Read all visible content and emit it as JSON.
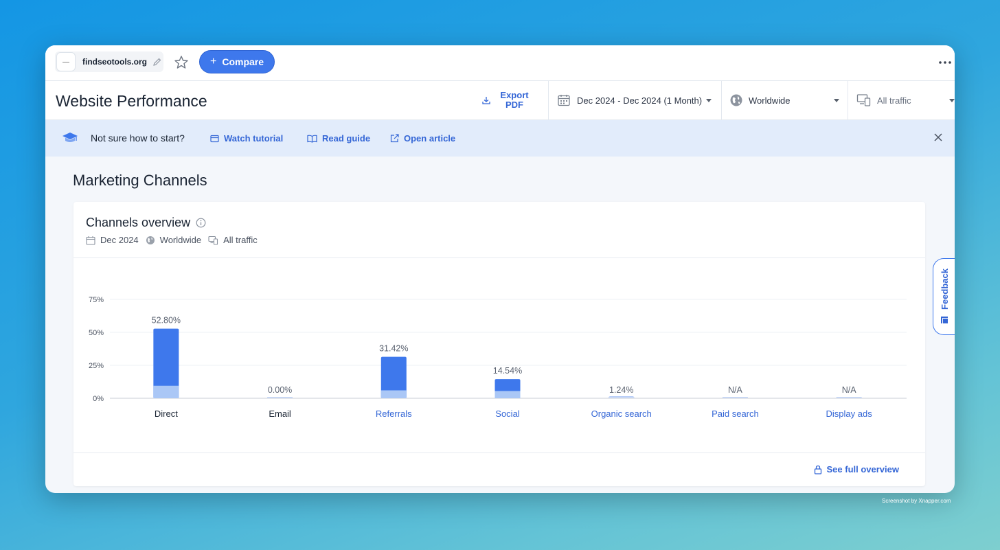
{
  "topbar": {
    "site_name": "findseotools.org",
    "compare_label": "Compare"
  },
  "header": {
    "title": "Website Performance",
    "export_line1": "Export",
    "export_line2": "PDF",
    "date_range": "Dec 2024 - Dec 2024 (1 Month)",
    "region": "Worldwide",
    "traffic": "All traffic"
  },
  "tips": {
    "prompt": "Not sure how to start?",
    "watch": "Watch tutorial",
    "read": "Read guide",
    "open": "Open article"
  },
  "section_title": "Marketing Channels",
  "card": {
    "title": "Channels overview",
    "date": "Dec 2024",
    "region": "Worldwide",
    "traffic": "All traffic",
    "see_full": "See full overview"
  },
  "feedback_label": "Feedback",
  "watermark": "Screenshot by Xnapper.com",
  "colors": {
    "accent": "#3e78ec",
    "bar_dark": "#3e78ec",
    "bar_light": "#aac7f6",
    "link": "#3466d6"
  },
  "chart_data": {
    "type": "bar",
    "categories": [
      "Direct",
      "Email",
      "Referrals",
      "Social",
      "Organic search",
      "Paid search",
      "Display ads"
    ],
    "values": [
      52.8,
      0,
      31.42,
      14.54,
      1.24,
      null,
      null
    ],
    "light_values": [
      9.5,
      0,
      6,
      5.5,
      0,
      null,
      null
    ],
    "labels": [
      "52.80%",
      "0.00%",
      "31.42%",
      "14.54%",
      "1.24%",
      "N/A",
      "N/A"
    ],
    "y_ticks": [
      "0%",
      "25%",
      "50%",
      "75%"
    ],
    "y_tick_values": [
      0,
      25,
      50,
      75
    ],
    "ylim": [
      0,
      75
    ],
    "linked": [
      false,
      false,
      true,
      true,
      true,
      true,
      true
    ],
    "grid": true
  }
}
